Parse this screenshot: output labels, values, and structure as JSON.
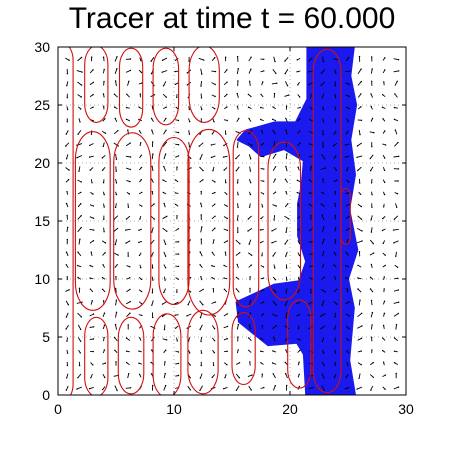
{
  "chart_data": {
    "type": "scatter",
    "title": "Tracer at time t = 60.000",
    "xlabel": "",
    "ylabel": "",
    "xlim": [
      0,
      30
    ],
    "ylim": [
      0,
      30
    ],
    "xticks": [
      0,
      10,
      20,
      30
    ],
    "yticks": [
      0,
      5,
      10,
      15,
      20,
      25,
      30
    ],
    "grid": "dotted",
    "colors": {
      "tracer": "#1a1aee",
      "contour": "#d01010",
      "quiver": "#000000",
      "grid": "#999999"
    },
    "tracer_band": {
      "x_left": 21.5,
      "x_right": 25.6,
      "description_points": [
        [
          21.5,
          30
        ],
        [
          21.5,
          25.5
        ],
        [
          20.5,
          23.5
        ],
        [
          18.7,
          23.5
        ],
        [
          16.2,
          22.8
        ],
        [
          15.5,
          22.0
        ],
        [
          16.5,
          21.5
        ],
        [
          17.5,
          20.6
        ],
        [
          19.5,
          21.2
        ],
        [
          21.2,
          20.2
        ],
        [
          21.0,
          18.0
        ],
        [
          20.7,
          16.5
        ],
        [
          20.7,
          13.7
        ],
        [
          21.4,
          11.5
        ],
        [
          20.8,
          9.8
        ],
        [
          18.6,
          9.5
        ],
        [
          15.4,
          8.0
        ],
        [
          15.6,
          6.3
        ],
        [
          18.1,
          4.3
        ],
        [
          20.6,
          4.5
        ],
        [
          21.2,
          3.5
        ],
        [
          21.4,
          0.0
        ],
        [
          25.6,
          0.0
        ],
        [
          25.1,
          3.0
        ],
        [
          25.5,
          7.5
        ],
        [
          25.0,
          10.0
        ],
        [
          25.8,
          12.5
        ],
        [
          25.1,
          16.0
        ],
        [
          25.6,
          19.0
        ],
        [
          25.2,
          22.0
        ],
        [
          25.7,
          25.0
        ],
        [
          25.2,
          27.5
        ],
        [
          25.5,
          30.0
        ]
      ]
    },
    "contours": [
      {
        "cx": 0.4,
        "cy": 14.9,
        "rx": 0.9,
        "ry": 15.4
      },
      {
        "cx": 3.3,
        "cy": 3.3,
        "rx": 1.0,
        "ry": 3.4
      },
      {
        "cx": 3.0,
        "cy": 15.0,
        "rx": 1.5,
        "ry": 7.7
      },
      {
        "cx": 3.3,
        "cy": 26.8,
        "rx": 1.0,
        "ry": 3.3
      },
      {
        "cx": 6.3,
        "cy": 3.4,
        "rx": 1.1,
        "ry": 3.3
      },
      {
        "cx": 6.4,
        "cy": 15.0,
        "rx": 1.6,
        "ry": 7.6
      },
      {
        "cx": 6.3,
        "cy": 26.5,
        "rx": 1.0,
        "ry": 3.4
      },
      {
        "cx": 9.4,
        "cy": 3.4,
        "rx": 1.2,
        "ry": 3.6
      },
      {
        "cx": 10.0,
        "cy": 15.0,
        "rx": 1.3,
        "ry": 7.2
      },
      {
        "cx": 9.3,
        "cy": 26.6,
        "rx": 1.1,
        "ry": 3.3
      },
      {
        "cx": 12.5,
        "cy": 3.7,
        "rx": 1.3,
        "ry": 3.6
      },
      {
        "cx": 13.0,
        "cy": 14.9,
        "rx": 1.8,
        "ry": 8.0
      },
      {
        "cx": 12.6,
        "cy": 26.8,
        "rx": 1.3,
        "ry": 3.3
      },
      {
        "cx": 16.2,
        "cy": 15.2,
        "rx": 1.1,
        "ry": 7.6
      },
      {
        "cx": 16.0,
        "cy": 4.0,
        "rx": 1.0,
        "ry": 3.1
      },
      {
        "cx": 19.5,
        "cy": 15.0,
        "rx": 1.4,
        "ry": 6.8
      },
      {
        "cx": 20.8,
        "cy": 4.4,
        "rx": 1.0,
        "ry": 3.8
      },
      {
        "cx": 23.2,
        "cy": 15.0,
        "rx": 1.2,
        "ry": 14.8
      },
      {
        "cx": 24.8,
        "cy": 15.4,
        "rx": 0.4,
        "ry": 2.4
      }
    ],
    "quiver": {
      "x_start": 0.8,
      "x_end": 29.5,
      "x_step": 1.05,
      "y_start": 0.6,
      "y_end": 29.5,
      "y_step": 1.05
    }
  }
}
